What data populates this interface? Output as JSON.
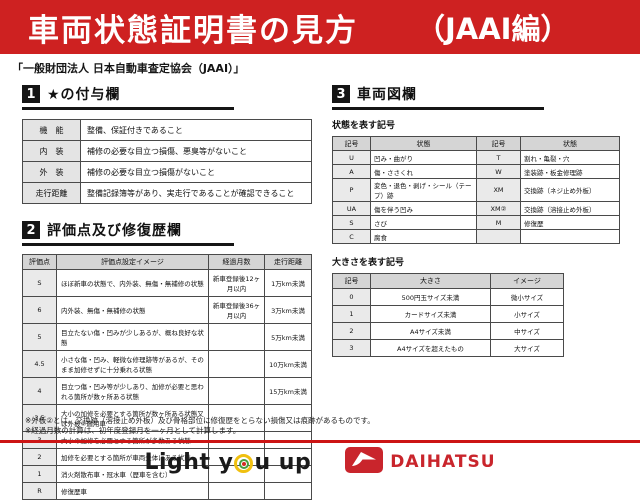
{
  "banner": {
    "title": "車両状態証明書の見方",
    "edition": "（JAAI編）"
  },
  "organization": "「一般財団法人 日本自動車査定協会（JAAI）」",
  "section1": {
    "number": "1",
    "title": "★の付与欄",
    "rows": [
      [
        "機　能",
        "整備、保証付きであること"
      ],
      [
        "内　装",
        "補修の必要な目立つ損傷、悪臭等がないこと"
      ],
      [
        "外　装",
        "補修の必要な目立つ損傷がないこと"
      ],
      [
        "走行距離",
        "整備記録簿等があり、実走行であることが確認できること"
      ]
    ]
  },
  "section2": {
    "number": "2",
    "title": "評価点及び修復歴欄",
    "headers": [
      "評価点",
      "評価点設定イメージ",
      "経過月数",
      "走行距離"
    ],
    "rows": [
      [
        "S",
        "ほぼ新車の状態で、内外装、無傷・無補修の状態",
        "新車登録後12ヶ月以内",
        "1万km未満"
      ],
      [
        "6",
        "内外装、無傷・無補修の状態",
        "新車登録後36ヶ月以内",
        "3万km未満"
      ],
      [
        "5",
        "目立たない傷・凹みが少しあるが、概ね良好な状態",
        "",
        "5万km未満"
      ],
      [
        "4.5",
        "小さな傷・凹み、軽微な修理跡等があるが、そのまま加修せずに十分乗れる状態",
        "",
        "10万km未満"
      ],
      [
        "4",
        "目立つ傷・凹み等が少しあり、加修が必要と思われる箇所が数ヶ所ある状態",
        "",
        "15万km未満"
      ],
      [
        "3.5",
        "大小の加修を必要とする箇所が数ヶ所ある状態又は外板②適用車",
        "",
        ""
      ],
      [
        "3",
        "大小の加修を必要とする箇所が多数ある状態",
        "",
        ""
      ],
      [
        "2",
        "加修を必要とする箇所が車両全体にある状態",
        "",
        ""
      ],
      [
        "1",
        "消火剤散布車・冠水車（歴車を含む）",
        "",
        ""
      ],
      [
        "R",
        "修復歴車",
        "",
        ""
      ]
    ]
  },
  "section3": {
    "number": "3",
    "title": "車両図欄",
    "condition_label": "状態を表す記号",
    "condition_headers": [
      "記号",
      "状態",
      "記号",
      "状態"
    ],
    "condition_rows": [
      [
        "U",
        "凹み・曲がり",
        "T",
        "割れ・亀裂・穴"
      ],
      [
        "A",
        "傷・ささくれ",
        "W",
        "塗装跡・板金修理跡"
      ],
      [
        "P",
        "変色・退色・剥げ・シール（テープ）跡",
        "XM",
        "交換跡（ネジ止め外板）"
      ],
      [
        "UA",
        "傷を伴う凹み",
        "XM②",
        "交換跡（溶接止め外板）"
      ],
      [
        "S",
        "さび",
        "M",
        "修復歴"
      ],
      [
        "C",
        "腐食",
        "",
        ""
      ]
    ],
    "size_label": "大きさを表す記号",
    "size_headers": [
      "記号",
      "大きさ",
      "イメージ"
    ],
    "size_rows": [
      [
        "0",
        "500円玉サイズ未満",
        "微小サイズ"
      ],
      [
        "1",
        "カードサイズ未満",
        "小サイズ"
      ],
      [
        "2",
        "A4サイズ未満",
        "中サイズ"
      ],
      [
        "3",
        "A4サイズを超えたもの",
        "大サイズ"
      ]
    ]
  },
  "notes": [
    "※外板②とは、交換跡（溶接止め外板）及び骨格部位に修復歴をとらない損傷又は痕跡があるものです。",
    "※経過月数の計算は、初年度登録月を一ヶ月として計算します。"
  ],
  "footer": {
    "slogan_left": "Light y",
    "slogan_right": "u up",
    "brand": "DAIHATSU"
  },
  "colors": {
    "banner_red": "#ce2121",
    "rule_red": "#cc1414",
    "brand_red": "#c9252c",
    "table_header_bg": "#d5d5d5",
    "label_cell_bg": "#e9e9e9"
  }
}
